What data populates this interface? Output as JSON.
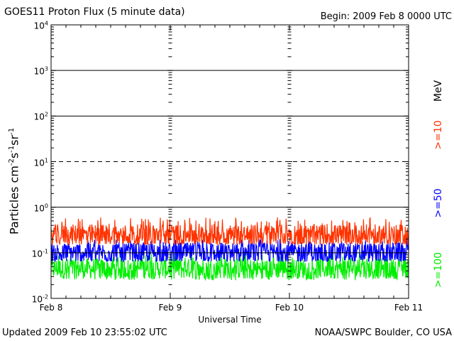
{
  "header": {
    "title": "GOES11 Proton Flux (5 minute data)",
    "begin": "Begin: 2009 Feb 8 0000 UTC"
  },
  "footer": {
    "updated": "Updated 2009 Feb 10 23:55:02 UTC",
    "source": "NOAA/SWPC Boulder, CO USA"
  },
  "legend": {
    "unit": "MeV",
    "series_labels": [
      {
        "text": ">=10",
        "color": "#ff3300"
      },
      {
        "text": ">=50",
        "color": "#0000ff"
      },
      {
        "text": ">=100",
        "color": "#00ee00"
      }
    ]
  },
  "chart_data": {
    "type": "line",
    "title": "GOES11 Proton Flux (5 minute data)",
    "xlabel": "Universal Time",
    "ylabel": "Particles cm-2s-1sr-1",
    "yscale": "log",
    "ylim": [
      0.01,
      10000
    ],
    "xlim": [
      0,
      3
    ],
    "x_ticks": [
      "Feb 8",
      "Feb 9",
      "Feb 10",
      "Feb 11"
    ],
    "y_tick_base": "10",
    "y_tick_exponents": [
      "-2",
      "-1",
      "0",
      "1",
      "2",
      "3",
      "4"
    ],
    "reference_lines": [
      {
        "y": 1000,
        "style": "solid"
      },
      {
        "y": 100,
        "style": "solid"
      },
      {
        "y": 10,
        "style": "dashed"
      },
      {
        "y": 1,
        "style": "solid"
      },
      {
        "y": 0.1,
        "style": "solid"
      }
    ],
    "grid": "day-boundary tick marks",
    "legend_placement": "right, vertical",
    "series": [
      {
        "name": ">=10 MeV",
        "color": "#ff3300",
        "base": 0.25,
        "min": 0.15,
        "max": 0.6
      },
      {
        "name": ">=50 MeV",
        "color": "#0000ff",
        "base": 0.1,
        "min": 0.065,
        "max": 0.2
      },
      {
        "name": ">=100 MeV",
        "color": "#00ee00",
        "base": 0.045,
        "min": 0.025,
        "max": 0.1
      }
    ]
  }
}
